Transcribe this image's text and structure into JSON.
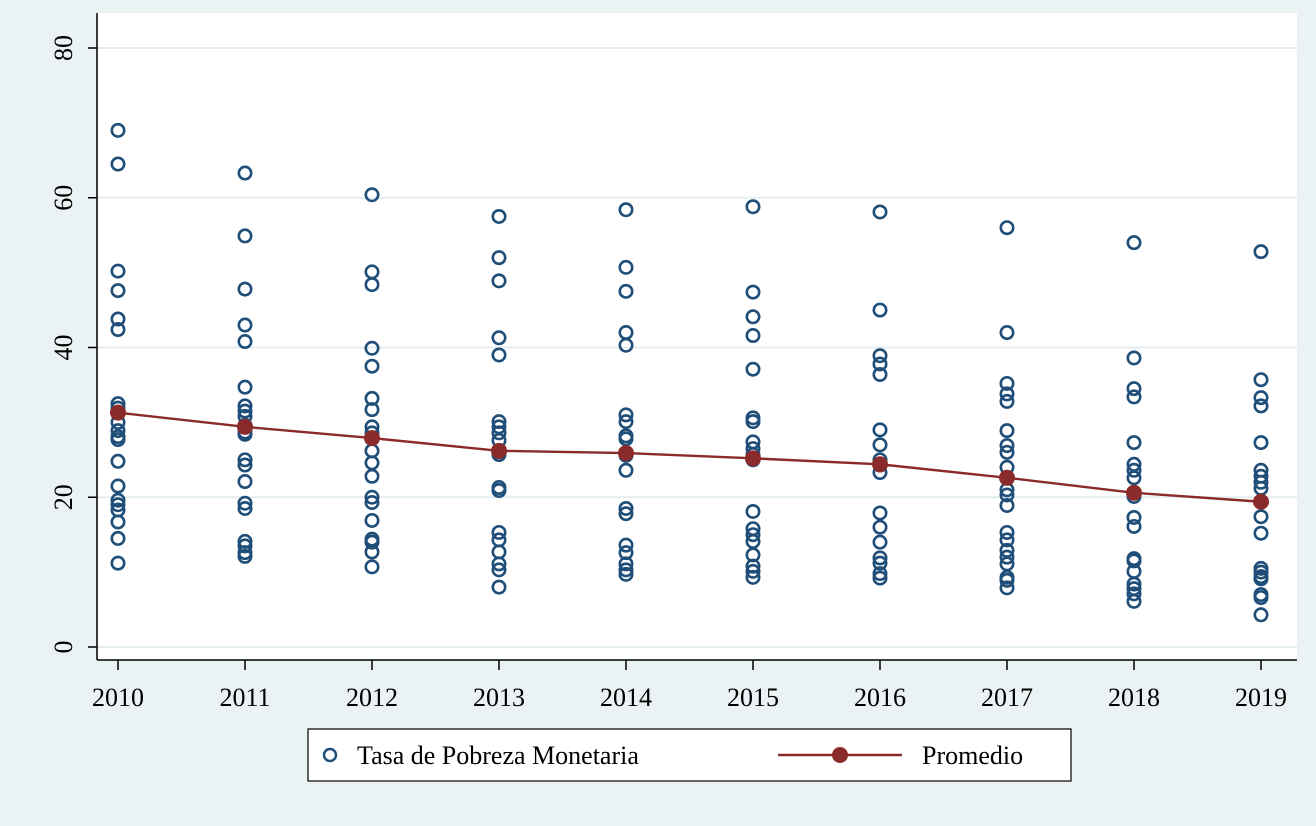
{
  "chart_data": {
    "type": "scatter",
    "title": "",
    "xlabel": "",
    "ylabel": "",
    "ylim": [
      0,
      80
    ],
    "yticks": [
      "0",
      "20",
      "40",
      "60",
      "80"
    ],
    "categories": [
      "2010",
      "2011",
      "2012",
      "2013",
      "2014",
      "2015",
      "2016",
      "2017",
      "2018",
      "2019"
    ],
    "grid": true,
    "legend_position": "bottom",
    "series": [
      {
        "name": "Tasa de Pobreza Monetaria",
        "marker": "hollow-circle",
        "color": "#1f4e79",
        "points": {
          "2010": [
            69.0,
            64.5,
            50.2,
            47.6,
            43.8,
            42.4,
            32.5,
            31.9,
            30.0,
            28.9,
            28.1,
            27.7,
            24.8,
            21.5,
            19.6,
            19.0,
            18.3,
            16.7,
            14.5,
            11.2
          ],
          "2011": [
            63.3,
            54.9,
            47.8,
            43.0,
            40.8,
            34.7,
            32.2,
            31.5,
            30.8,
            29.6,
            28.7,
            28.4,
            25.0,
            24.3,
            22.1,
            19.2,
            18.5,
            14.1,
            13.5,
            12.6,
            12.1
          ],
          "2012": [
            60.4,
            50.1,
            48.4,
            39.9,
            37.5,
            33.2,
            31.7,
            29.4,
            28.6,
            26.2,
            24.6,
            22.8,
            20.0,
            19.3,
            16.9,
            14.4,
            14.0,
            12.7,
            10.7
          ],
          "2013": [
            57.5,
            52.0,
            48.9,
            41.3,
            39.0,
            30.1,
            29.4,
            28.6,
            27.6,
            26.1,
            25.7,
            21.3,
            20.9,
            15.3,
            14.3,
            12.7,
            11.1,
            10.3,
            8.0
          ],
          "2014": [
            58.4,
            50.7,
            47.5,
            42.0,
            40.3,
            31.0,
            30.1,
            28.2,
            27.8,
            25.6,
            23.6,
            18.5,
            17.8,
            13.6,
            12.6,
            11.1,
            10.3,
            9.7
          ],
          "2015": [
            58.8,
            47.4,
            44.1,
            41.6,
            37.1,
            30.6,
            30.1,
            27.4,
            26.5,
            25.7,
            25.0,
            18.1,
            15.8,
            15.0,
            14.1,
            12.3,
            10.8,
            10.1,
            9.3
          ],
          "2016": [
            58.1,
            45.0,
            38.9,
            37.8,
            36.4,
            29.0,
            27.0,
            25.0,
            24.3,
            23.3,
            17.9,
            16.0,
            14.0,
            11.9,
            11.2,
            9.8,
            9.2
          ],
          "2017": [
            56.0,
            42.0,
            35.2,
            33.8,
            32.8,
            28.9,
            26.9,
            26.0,
            24.0,
            21.0,
            20.3,
            18.9,
            15.3,
            14.3,
            12.9,
            12.0,
            11.1,
            9.3,
            8.9,
            7.9
          ],
          "2018": [
            54.0,
            38.6,
            34.5,
            33.4,
            27.3,
            24.4,
            23.6,
            22.6,
            20.6,
            20.1,
            17.3,
            16.1,
            11.8,
            11.5,
            10.1,
            8.4,
            7.8,
            7.1,
            6.1
          ],
          "2019": [
            52.8,
            35.7,
            33.3,
            32.2,
            27.3,
            23.6,
            22.8,
            22.0,
            21.2,
            17.4,
            15.2,
            10.5,
            10.0,
            9.4,
            9.1,
            7.0,
            6.6,
            4.3
          ]
        }
      },
      {
        "name": "Promedio",
        "marker": "filled-circle-line",
        "color": "#8b2a2a",
        "values": [
          31.3,
          29.4,
          27.9,
          26.2,
          25.9,
          25.2,
          24.4,
          22.6,
          20.6,
          19.4
        ]
      }
    ]
  }
}
